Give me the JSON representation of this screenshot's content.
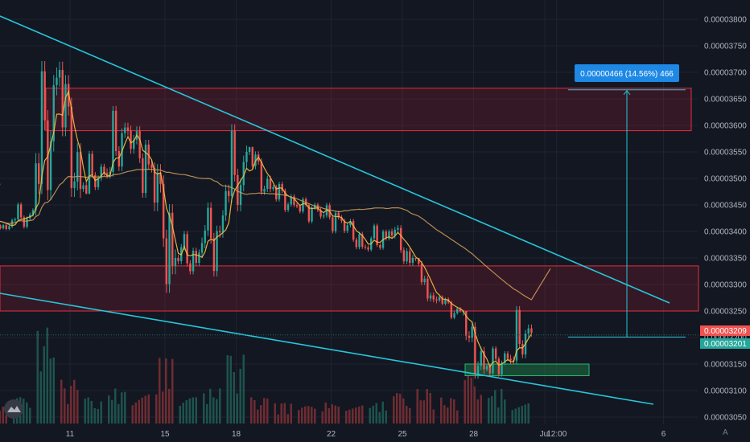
{
  "chart_data": {
    "type": "candlestick",
    "price_axis": {
      "ticks": [
        "0.00003800",
        "0.00003750",
        "0.00003700",
        "0.00003650",
        "0.00003600",
        "0.00003550",
        "0.00003500",
        "0.00003450",
        "0.00003400",
        "0.00003350",
        "0.00003300",
        "0.00003250",
        "0.00003200",
        "0.00003150",
        "0.00003100",
        "0.00003050"
      ],
      "range": [
        3.036e-05,
        3.83e-05
      ]
    },
    "time_axis": {
      "ticks": [
        "11",
        "15",
        "18",
        "22",
        "25",
        "28",
        "Jul",
        "12:00",
        "6"
      ]
    },
    "candles": [
      {
        "t": "Jun 08",
        "o": 3.42e-05,
        "h": 3.44e-05,
        "l": 3.4e-05,
        "c": 3.41e-05
      },
      {
        "t": "Jun 09",
        "o": 3.41e-05,
        "h": 3.46e-05,
        "l": 3.4e-05,
        "c": 3.44e-05
      },
      {
        "t": "Jun 10",
        "o": 3.44e-05,
        "h": 3.75e-05,
        "l": 3.43e-05,
        "c": 3.69e-05
      },
      {
        "t": "Jun 11",
        "o": 3.69e-05,
        "h": 3.72e-05,
        "l": 3.44e-05,
        "c": 3.48e-05
      },
      {
        "t": "Jun 12",
        "o": 3.48e-05,
        "h": 3.56e-05,
        "l": 3.47e-05,
        "c": 3.51e-05
      },
      {
        "t": "Jun 13",
        "o": 3.51e-05,
        "h": 3.65e-05,
        "l": 3.5e-05,
        "c": 3.59e-05
      },
      {
        "t": "Jun 14",
        "o": 3.59e-05,
        "h": 3.6e-05,
        "l": 3.45e-05,
        "c": 3.52e-05
      },
      {
        "t": "Jun 15",
        "o": 3.52e-05,
        "h": 3.53e-05,
        "l": 3.26e-05,
        "c": 3.35e-05
      },
      {
        "t": "Jun 16",
        "o": 3.35e-05,
        "h": 3.41e-05,
        "l": 3.31e-05,
        "c": 3.36e-05
      },
      {
        "t": "Jun 17",
        "o": 3.36e-05,
        "h": 3.47e-05,
        "l": 3.3e-05,
        "c": 3.43e-05
      },
      {
        "t": "Jun 18",
        "o": 3.43e-05,
        "h": 3.62e-05,
        "l": 3.42e-05,
        "c": 3.55e-05
      },
      {
        "t": "Jun 19",
        "o": 3.55e-05,
        "h": 3.56e-05,
        "l": 3.46e-05,
        "c": 3.48e-05
      },
      {
        "t": "Jun 20",
        "o": 3.48e-05,
        "h": 3.5e-05,
        "l": 3.43e-05,
        "c": 3.45e-05
      },
      {
        "t": "Jun 21",
        "o": 3.45e-05,
        "h": 3.47e-05,
        "l": 3.41e-05,
        "c": 3.44e-05
      },
      {
        "t": "Jun 22",
        "o": 3.44e-05,
        "h": 3.46e-05,
        "l": 3.39e-05,
        "c": 3.42e-05
      },
      {
        "t": "Jun 23",
        "o": 3.42e-05,
        "h": 3.43e-05,
        "l": 3.36e-05,
        "c": 3.37e-05
      },
      {
        "t": "Jun 24",
        "o": 3.37e-05,
        "h": 3.42e-05,
        "l": 3.36e-05,
        "c": 3.4e-05
      },
      {
        "t": "Jun 25",
        "o": 3.4e-05,
        "h": 3.42e-05,
        "l": 3.33e-05,
        "c": 3.35e-05
      },
      {
        "t": "Jun 26",
        "o": 3.35e-05,
        "h": 3.35e-05,
        "l": 3.26e-05,
        "c": 3.27e-05
      },
      {
        "t": "Jun 27",
        "o": 3.27e-05,
        "h": 3.28e-05,
        "l": 3.23e-05,
        "c": 3.25e-05
      },
      {
        "t": "Jun 28",
        "o": 3.25e-05,
        "h": 3.25e-05,
        "l": 3.11e-05,
        "c": 3.14e-05
      },
      {
        "t": "Jun 29",
        "o": 3.14e-05,
        "h": 3.19e-05,
        "l": 3.12e-05,
        "c": 3.16e-05
      },
      {
        "t": "Jun 30",
        "o": 3.16e-05,
        "h": 3.27e-05,
        "l": 3.15e-05,
        "c": 3.209e-05
      }
    ],
    "volume": [
      4,
      6,
      22,
      10,
      6,
      8,
      7,
      15,
      6,
      8,
      16,
      6,
      5,
      4,
      5,
      6,
      5,
      7,
      8,
      6,
      11,
      8,
      6
    ],
    "sma_fast_color": "#f5c242",
    "sma_slow_color": "#d4a15a",
    "trendline_color": "#26c6da",
    "zones": [
      {
        "type": "resistance",
        "top": 3.67e-05,
        "bottom": 3.59e-05
      },
      {
        "type": "resistance",
        "top": 3.335e-05,
        "bottom": 3.25e-05
      },
      {
        "type": "support",
        "top": 3.15e-05,
        "bottom": 3.128e-05
      }
    ],
    "trendlines": [
      {
        "name": "descending-upper",
        "from": {
          "t": "Jun 07",
          "p": 3.79e-05
        },
        "to": {
          "t": "Jul 06",
          "p": 3.265e-05
        }
      },
      {
        "name": "descending-lower",
        "from": {
          "t": "Jun 07",
          "p": 3.28e-05
        },
        "to": {
          "t": "Jul 06",
          "p": 3.075e-05
        }
      }
    ],
    "measure": {
      "label": "0.00000466 (14.56%) 466",
      "from_price": 3.201e-05,
      "to_price": 3.667e-05
    },
    "price_tags": [
      {
        "label": "0.00003209",
        "color": "#ef5350"
      },
      {
        "label": "0.00003201",
        "color": "#26a69a"
      }
    ],
    "watermark_icon": "tradingview-cloud-icon",
    "corner_label": "A"
  }
}
